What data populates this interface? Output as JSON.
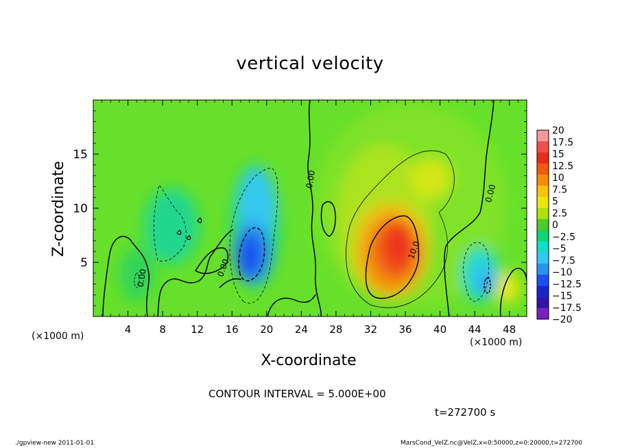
{
  "chart_data": {
    "type": "heatmap",
    "title": "vertical velocity",
    "xlabel": "X-coordinate",
    "ylabel": "Z-coordinate",
    "x_unit": "(×1000 m)",
    "x_ticks": [
      4,
      8,
      12,
      16,
      20,
      24,
      28,
      32,
      36,
      40,
      44,
      48
    ],
    "y_ticks": [
      5,
      10,
      15
    ],
    "xlim": [
      0,
      50
    ],
    "ylim": [
      0,
      20
    ],
    "colorbar": {
      "levels": [
        "20",
        "17.5",
        "15",
        "12.5",
        "10",
        "7.5",
        "5",
        "2.5",
        "0",
        "−2.5",
        "−5",
        "−7.5",
        "−10",
        "−12.5",
        "−15",
        "−17.5",
        "−20"
      ],
      "colors": [
        "#f49a9a",
        "#f05050",
        "#ea2c1c",
        "#f25a10",
        "#f68c0c",
        "#f6c40c",
        "#e8e80c",
        "#aee010",
        "#4ccc28",
        "#10d476",
        "#14dcc8",
        "#34c8f0",
        "#2c92f0",
        "#1c50ee",
        "#1c24c8",
        "#3014a8",
        "#7a20c0"
      ]
    },
    "contour_labels": [
      "0.00",
      "0.00",
      "0.00",
      "0.00",
      "10.0"
    ],
    "contour_interval": "CONTOUR INTERVAL = 5.000E+00",
    "time": "t=272700 s",
    "features": [
      {
        "kind": "updraft",
        "x": 35,
        "z": 6.8,
        "peak": 15
      },
      {
        "kind": "weak-updraft",
        "x": 38,
        "z": 12,
        "peak": 6
      },
      {
        "kind": "updraft",
        "x": 48,
        "z": 2.7,
        "peak": 8
      },
      {
        "kind": "downdraft",
        "x": 18,
        "z": 5,
        "peak": -15
      },
      {
        "kind": "downdraft",
        "x": 19,
        "z": 10.5,
        "peak": -6
      },
      {
        "kind": "downdraft",
        "x": 45,
        "z": 3.3,
        "peak": -11
      },
      {
        "kind": "downdraft",
        "x": 8,
        "z": 7.5,
        "peak": -4
      }
    ]
  },
  "footer": {
    "left": "./gpview-new  2011-01-01",
    "right": "MarsCond_VelZ.nc@VelZ,x=0:50000,z=0:20000,t=272700"
  }
}
